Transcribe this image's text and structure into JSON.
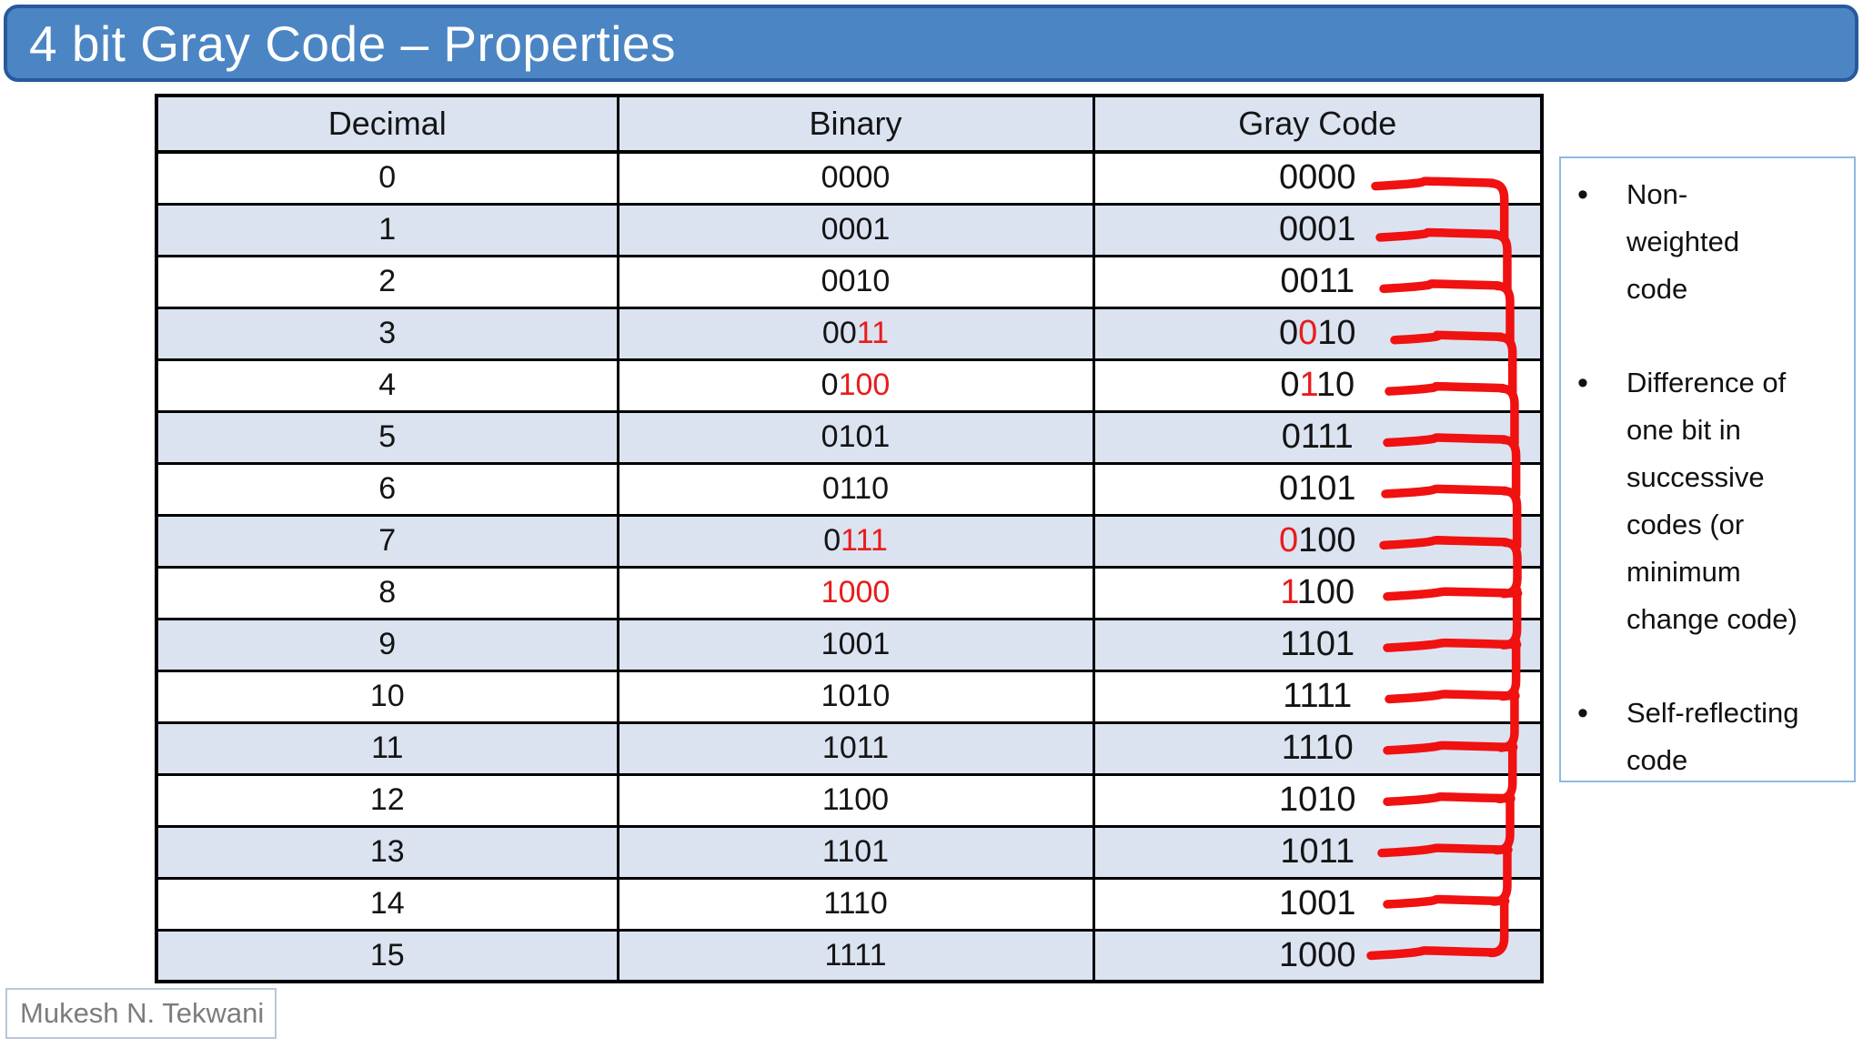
{
  "slide": {
    "title": "4 bit Gray Code – Properties",
    "footer": "Mukesh N. Tekwani"
  },
  "table": {
    "headers": [
      "Decimal",
      "Binary",
      "Gray Code"
    ],
    "rows": [
      {
        "decimal": "0",
        "binary": "0000",
        "binary_red_mask": "0000",
        "gray": "0000",
        "gray_red_mask": "0000"
      },
      {
        "decimal": "1",
        "binary": "0001",
        "binary_red_mask": "0000",
        "gray": "0001",
        "gray_red_mask": "0000"
      },
      {
        "decimal": "2",
        "binary": "0010",
        "binary_red_mask": "0000",
        "gray": "0011",
        "gray_red_mask": "0000"
      },
      {
        "decimal": "3",
        "binary": "0011",
        "binary_red_mask": "0011",
        "gray": "0010",
        "gray_red_mask": "0100"
      },
      {
        "decimal": "4",
        "binary": "0100",
        "binary_red_mask": "0111",
        "gray": "0110",
        "gray_red_mask": "0100"
      },
      {
        "decimal": "5",
        "binary": "0101",
        "binary_red_mask": "0000",
        "gray": "0111",
        "gray_red_mask": "0000"
      },
      {
        "decimal": "6",
        "binary": "0110",
        "binary_red_mask": "0000",
        "gray": "0101",
        "gray_red_mask": "0000"
      },
      {
        "decimal": "7",
        "binary": "0111",
        "binary_red_mask": "0111",
        "gray": "0100",
        "gray_red_mask": "1000"
      },
      {
        "decimal": "8",
        "binary": "1000",
        "binary_red_mask": "1111",
        "gray": "1100",
        "gray_red_mask": "1000"
      },
      {
        "decimal": "9",
        "binary": "1001",
        "binary_red_mask": "0000",
        "gray": "1101",
        "gray_red_mask": "0000"
      },
      {
        "decimal": "10",
        "binary": "1010",
        "binary_red_mask": "0000",
        "gray": "1111",
        "gray_red_mask": "0000"
      },
      {
        "decimal": "11",
        "binary": "1011",
        "binary_red_mask": "0000",
        "gray": "1110",
        "gray_red_mask": "0000"
      },
      {
        "decimal": "12",
        "binary": "1100",
        "binary_red_mask": "0000",
        "gray": "1010",
        "gray_red_mask": "0000"
      },
      {
        "decimal": "13",
        "binary": "1101",
        "binary_red_mask": "0000",
        "gray": "1011",
        "gray_red_mask": "0000"
      },
      {
        "decimal": "14",
        "binary": "1110",
        "binary_red_mask": "0000",
        "gray": "1001",
        "gray_red_mask": "0000"
      },
      {
        "decimal": "15",
        "binary": "1111",
        "binary_red_mask": "0000",
        "gray": "1000",
        "gray_red_mask": "0000"
      }
    ]
  },
  "notes": {
    "items": [
      "Non-\nweighted\ncode",
      "Difference of\none bit in\nsuccessive\ncodes  (or\nminimum\nchange code)",
      "Self-reflecting\ncode"
    ]
  },
  "colors": {
    "pen_red": "#f01111",
    "table_red_text": "#e81c1c",
    "title_fill": "#4b85c4",
    "title_border": "#28599c",
    "row_band_blue": "#dbe3f1",
    "panel_border": "#8fb8e4",
    "footer_text": "#7d7d7d"
  }
}
